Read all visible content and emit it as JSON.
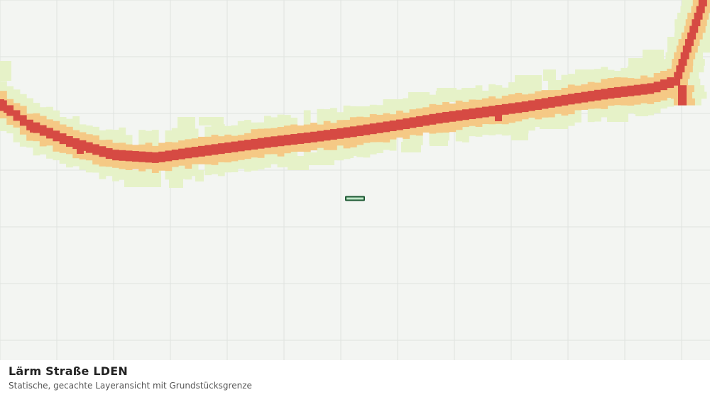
{
  "layer": {
    "title": "Lärm Straße LDEN",
    "subtitle": "Statische, gecachte Layeransicht mit Grundstücksgrenze"
  },
  "colors": {
    "background": "#f3f5f2",
    "grid": "#dfe2df",
    "noise_low": "#e6f2c8",
    "noise_mid": "#f5c985",
    "noise_high": "#d64a43",
    "parcel_fill": "#bfe6c8",
    "parcel_stroke": "#1e5a34"
  },
  "noise_bands": [
    "low",
    "mid",
    "high"
  ],
  "parcel_boundary": "Grundstücksgrenze"
}
